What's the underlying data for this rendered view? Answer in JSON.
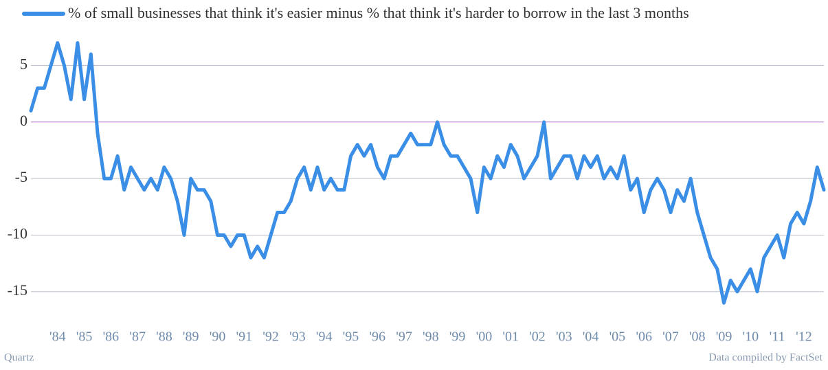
{
  "chart_data": {
    "type": "line",
    "legend": "top-left",
    "source_left": "Quartz",
    "source_right": "Data compiled by FactSet",
    "x": [
      1983,
      1983.25,
      1983.5,
      1983.75,
      1984,
      1984.25,
      1984.5,
      1984.75,
      1985,
      1985.25,
      1985.5,
      1985.75,
      1986,
      1986.25,
      1986.5,
      1986.75,
      1987,
      1987.25,
      1987.5,
      1987.75,
      1988,
      1988.25,
      1988.5,
      1988.75,
      1989,
      1989.25,
      1989.5,
      1989.75,
      1990,
      1990.25,
      1990.5,
      1990.75,
      1991,
      1991.25,
      1991.5,
      1991.75,
      1992,
      1992.25,
      1992.5,
      1992.75,
      1993,
      1993.25,
      1993.5,
      1993.75,
      1994,
      1994.25,
      1994.5,
      1994.75,
      1995,
      1995.25,
      1995.5,
      1995.75,
      1996,
      1996.25,
      1996.5,
      1996.75,
      1997,
      1997.25,
      1997.5,
      1997.75,
      1998,
      1998.25,
      1998.5,
      1998.75,
      1999,
      1999.25,
      1999.5,
      1999.75,
      2000,
      2000.25,
      2000.5,
      2000.75,
      2001,
      2001.25,
      2001.5,
      2001.75,
      2002,
      2002.25,
      2002.5,
      2002.75,
      2003,
      2003.25,
      2003.5,
      2003.75,
      2004,
      2004.25,
      2004.5,
      2004.75,
      2005,
      2005.25,
      2005.5,
      2005.75,
      2006,
      2006.25,
      2006.5,
      2006.75,
      2007,
      2007.25,
      2007.5,
      2007.75,
      2008,
      2008.25,
      2008.5,
      2008.75,
      2009,
      2009.25,
      2009.5,
      2009.75,
      2010,
      2010.25,
      2010.5,
      2010.75,
      2011,
      2011.25,
      2011.5,
      2011.75,
      2012,
      2012.25,
      2012.5,
      2012.75
    ],
    "series": [
      {
        "name": "% of small businesses that think it's easier minus % that think it's harder to borrow in the last 3 months",
        "color": "#3a8ee6",
        "values": [
          1,
          3,
          3,
          5,
          7,
          5,
          2,
          7,
          2,
          6,
          -1,
          -5,
          -5,
          -3,
          -6,
          -4,
          -5,
          -6,
          -5,
          -6,
          -4,
          -5,
          -7,
          -10,
          -5,
          -6,
          -6,
          -7,
          -10,
          -10,
          -11,
          -10,
          -10,
          -12,
          -11,
          -12,
          -10,
          -8,
          -8,
          -7,
          -5,
          -4,
          -6,
          -4,
          -6,
          -5,
          -6,
          -6,
          -3,
          -2,
          -3,
          -2,
          -4,
          -5,
          -3,
          -3,
          -2,
          -1,
          -2,
          -2,
          -2,
          0,
          -2,
          -3,
          -3,
          -4,
          -5,
          -8,
          -4,
          -5,
          -3,
          -4,
          -2,
          -3,
          -5,
          -4,
          -3,
          0,
          -5,
          -4,
          -3,
          -3,
          -5,
          -3,
          -4,
          -3,
          -5,
          -4,
          -5,
          -3,
          -6,
          -5,
          -8,
          -6,
          -5,
          -6,
          -8,
          -6,
          -7,
          -5,
          -8,
          -10,
          -12,
          -13,
          -16,
          -14,
          -15,
          -14,
          -13,
          -15,
          -12,
          -11,
          -10,
          -12,
          -9,
          -8,
          -9,
          -7,
          -4,
          -6
        ]
      }
    ],
    "xlim": [
      1983,
      2012.75
    ],
    "xticks": [
      {
        "value": 1984,
        "label": "'84"
      },
      {
        "value": 1985,
        "label": "'85"
      },
      {
        "value": 1986,
        "label": "'86"
      },
      {
        "value": 1987,
        "label": "'87"
      },
      {
        "value": 1988,
        "label": "'88"
      },
      {
        "value": 1989,
        "label": "'89"
      },
      {
        "value": 1990,
        "label": "'90"
      },
      {
        "value": 1991,
        "label": "'91"
      },
      {
        "value": 1992,
        "label": "'92"
      },
      {
        "value": 1993,
        "label": "'93"
      },
      {
        "value": 1994,
        "label": "'94"
      },
      {
        "value": 1995,
        "label": "'95"
      },
      {
        "value": 1996,
        "label": "'96"
      },
      {
        "value": 1997,
        "label": "'97"
      },
      {
        "value": 1998,
        "label": "'98"
      },
      {
        "value": 1999,
        "label": "'99"
      },
      {
        "value": 2000,
        "label": "'00"
      },
      {
        "value": 2001,
        "label": "'01"
      },
      {
        "value": 2002,
        "label": "'02"
      },
      {
        "value": 2003,
        "label": "'03"
      },
      {
        "value": 2004,
        "label": "'04"
      },
      {
        "value": 2005,
        "label": "'05"
      },
      {
        "value": 2006,
        "label": "'06"
      },
      {
        "value": 2007,
        "label": "'07"
      },
      {
        "value": 2008,
        "label": "'08"
      },
      {
        "value": 2009,
        "label": "'09"
      },
      {
        "value": 2010,
        "label": "'10"
      },
      {
        "value": 2011,
        "label": "'11"
      },
      {
        "value": 2012,
        "label": "'12"
      }
    ],
    "ylim": [
      -17.5,
      8
    ],
    "yticks": [
      5,
      0,
      -5,
      -10,
      -15
    ],
    "grid": true,
    "grid_color": "#b8bcc4",
    "zero_line_color": "#b36bc7"
  }
}
